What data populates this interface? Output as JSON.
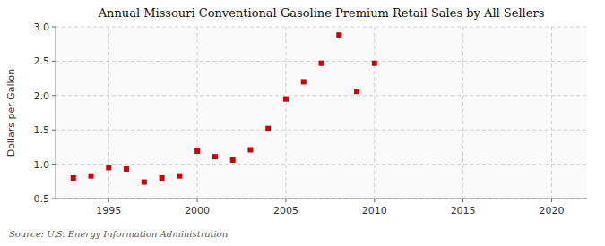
{
  "chart_data": {
    "type": "scatter",
    "title": "Annual Missouri Conventional Gasoline Premium Retail Sales by All Sellers",
    "ylabel": "Dollars per Gallon",
    "source": "Source: U.S. Energy Information Administration",
    "x": [
      1993,
      1994,
      1995,
      1996,
      1997,
      1998,
      1999,
      2000,
      2001,
      2002,
      2003,
      2004,
      2005,
      2006,
      2007,
      2008,
      2009,
      2010
    ],
    "values": [
      0.8,
      0.83,
      0.95,
      0.93,
      0.74,
      0.8,
      0.83,
      1.19,
      1.11,
      1.06,
      1.21,
      1.52,
      1.95,
      2.2,
      2.47,
      2.88,
      2.06,
      2.47
    ],
    "color": "#cc0000",
    "marker": "square",
    "xlim": [
      1992,
      2022
    ],
    "xticks": [
      1995,
      2000,
      2005,
      2010,
      2015,
      2020
    ],
    "ylim": [
      0.5,
      3.0
    ],
    "yticks": [
      0.5,
      {
        "value": 1.0,
        "label": "1.0"
      },
      1.5,
      {
        "value": 2.0,
        "label": "2.0"
      },
      2.5,
      {
        "value": 3.0,
        "label": "3.0"
      }
    ],
    "grid": true
  }
}
